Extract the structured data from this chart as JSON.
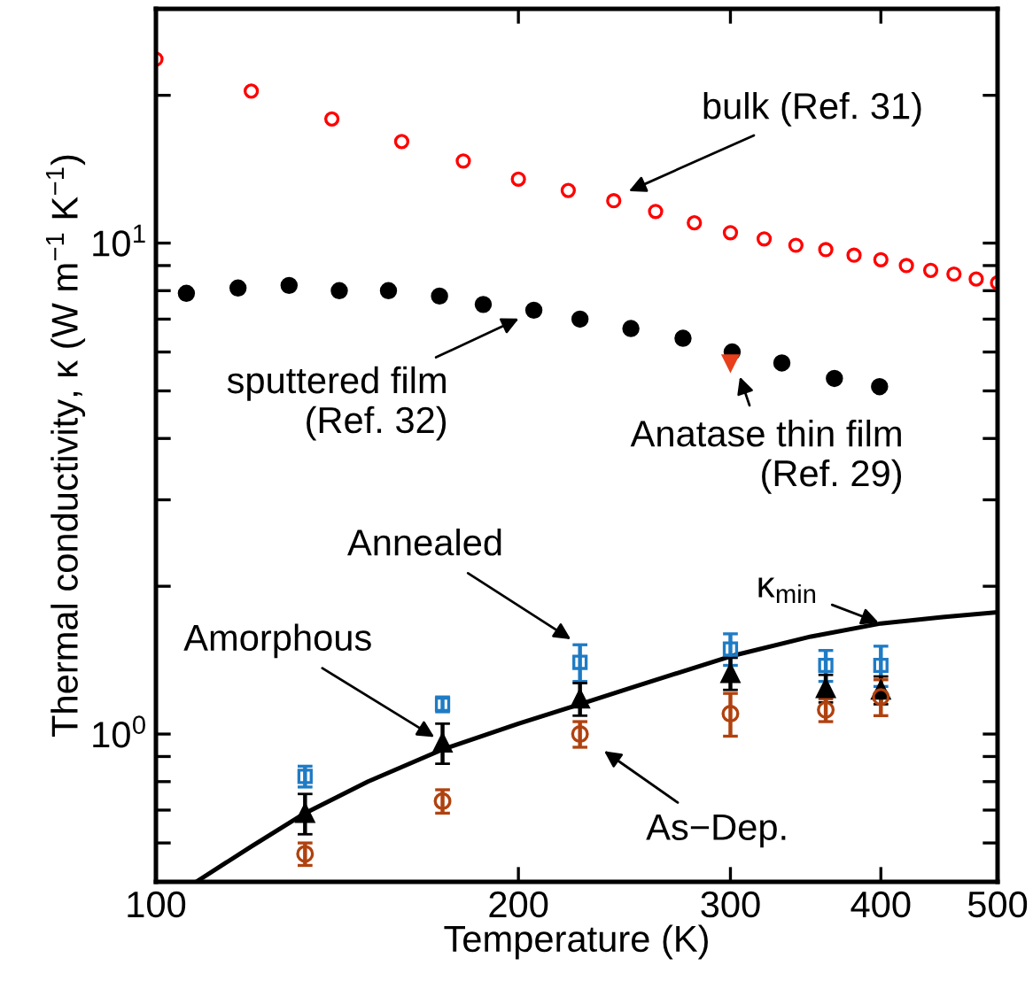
{
  "chart_data": {
    "type": "scatter",
    "xlabel": "Temperature (K)",
    "ylabel": "Thermal conductivity, κ (W m$^{−1}$ K$^{−1}$)",
    "log": "xy",
    "grid": false,
    "legend": false,
    "xlim": [
      100,
      500
    ],
    "ylim": [
      0.5,
      30
    ],
    "xticks": [
      100,
      200,
      300,
      400,
      500
    ],
    "yticks": [
      {
        "value": 0.6,
        "label": null
      },
      {
        "value": 0.7,
        "label": null
      },
      {
        "value": 0.8,
        "label": null
      },
      {
        "value": 0.9,
        "label": null
      },
      {
        "value": 1,
        "label": "10$^{0}$"
      },
      {
        "value": 2,
        "label": null
      },
      {
        "value": 3,
        "label": null
      },
      {
        "value": 4,
        "label": null
      },
      {
        "value": 5,
        "label": null
      },
      {
        "value": 6,
        "label": null
      },
      {
        "value": 7,
        "label": null
      },
      {
        "value": 8,
        "label": null
      },
      {
        "value": 9,
        "label": null
      },
      {
        "value": 10,
        "label": "10$^{1}$"
      },
      {
        "value": 20,
        "label": null
      },
      {
        "value": 30,
        "label": null
      }
    ],
    "series": [
      {
        "type": "scatter",
        "color": "#ff0000",
        "marker": "circle",
        "x": [
          100,
          120,
          140,
          160,
          180,
          200,
          220,
          240,
          260,
          280,
          300,
          320,
          340,
          360,
          380,
          400,
          420,
          440,
          460,
          480,
          500
        ],
        "values": [
          23.7,
          20.4,
          17.9,
          16.1,
          14.7,
          13.5,
          12.8,
          12.2,
          11.6,
          11.0,
          10.5,
          10.2,
          9.9,
          9.7,
          9.45,
          9.25,
          9.0,
          8.8,
          8.65,
          8.45,
          8.3
        ]
      },
      {
        "type": "scatter",
        "color": "#000000",
        "marker": "circle",
        "x": [
          106,
          117,
          129,
          142,
          156,
          172,
          187,
          206,
          225,
          248,
          274,
          301,
          331,
          366,
          399
        ],
        "values": [
          7.9,
          8.1,
          8.2,
          8.0,
          8.0,
          7.8,
          7.5,
          7.3,
          7.0,
          6.7,
          6.4,
          6.0,
          5.7,
          5.3,
          5.1
        ]
      },
      {
        "type": "scatter",
        "color": "#e8401c",
        "marker": "triangle_down",
        "x": [
          300
        ],
        "values": [
          5.7
        ]
      },
      {
        "type": "line",
        "color": "#000000",
        "marker": "none",
        "line_style": "solid",
        "x": [
          108,
          120,
          133,
          150,
          173,
          200,
          225,
          250,
          300,
          350,
          400,
          450,
          500
        ],
        "values": [
          0.5,
          0.59,
          0.69,
          0.8,
          0.93,
          1.05,
          1.15,
          1.25,
          1.44,
          1.58,
          1.68,
          1.73,
          1.77
        ]
      },
      {
        "type": "scatter",
        "color": "#1f7bc4",
        "marker": "square",
        "x": [
          133,
          173,
          225,
          300,
          360,
          400
        ],
        "values": [
          0.82,
          1.15,
          1.4,
          1.49,
          1.38,
          1.38
        ],
        "errors": [
          0.04,
          0.04,
          0.12,
          0.11,
          0.1,
          0.13
        ]
      },
      {
        "type": "scatter",
        "color": "#000000",
        "marker": "triangle",
        "x": [
          133,
          173,
          225,
          300,
          360,
          400
        ],
        "values": [
          0.69,
          0.96,
          1.18,
          1.33,
          1.24,
          1.23
        ],
        "errors": [
          0.065,
          0.09,
          0.09,
          0.1,
          0.08,
          0.08
        ]
      },
      {
        "type": "scatter",
        "color": "#b0420f",
        "marker": "circle",
        "x": [
          133,
          173,
          225,
          300,
          360,
          400
        ],
        "values": [
          0.57,
          0.73,
          1.0,
          1.1,
          1.12,
          1.19
        ],
        "errors": [
          0.03,
          0.04,
          0.06,
          0.11,
          0.06,
          0.1
        ]
      }
    ],
    "annotations": [
      {
        "text": "bulk (Ref. 31)",
        "x": 246,
        "y": 12.7
      },
      {
        "text": "sputtered film\n(Ref. 32)",
        "x": 201,
        "y": 7.05
      },
      {
        "text": "Anatase thin film\n(Ref. 29)",
        "x": 305,
        "y": 5.4
      },
      {
        "text": "Annealed",
        "x": 222,
        "y": 1.55
      },
      {
        "text": "κ$_{min}$",
        "x": 400,
        "y": 1.68
      },
      {
        "text": "Amorphous",
        "x": 171,
        "y": 0.98
      },
      {
        "text": "As−Dep.",
        "x": 225,
        "y": 1.0
      }
    ]
  }
}
